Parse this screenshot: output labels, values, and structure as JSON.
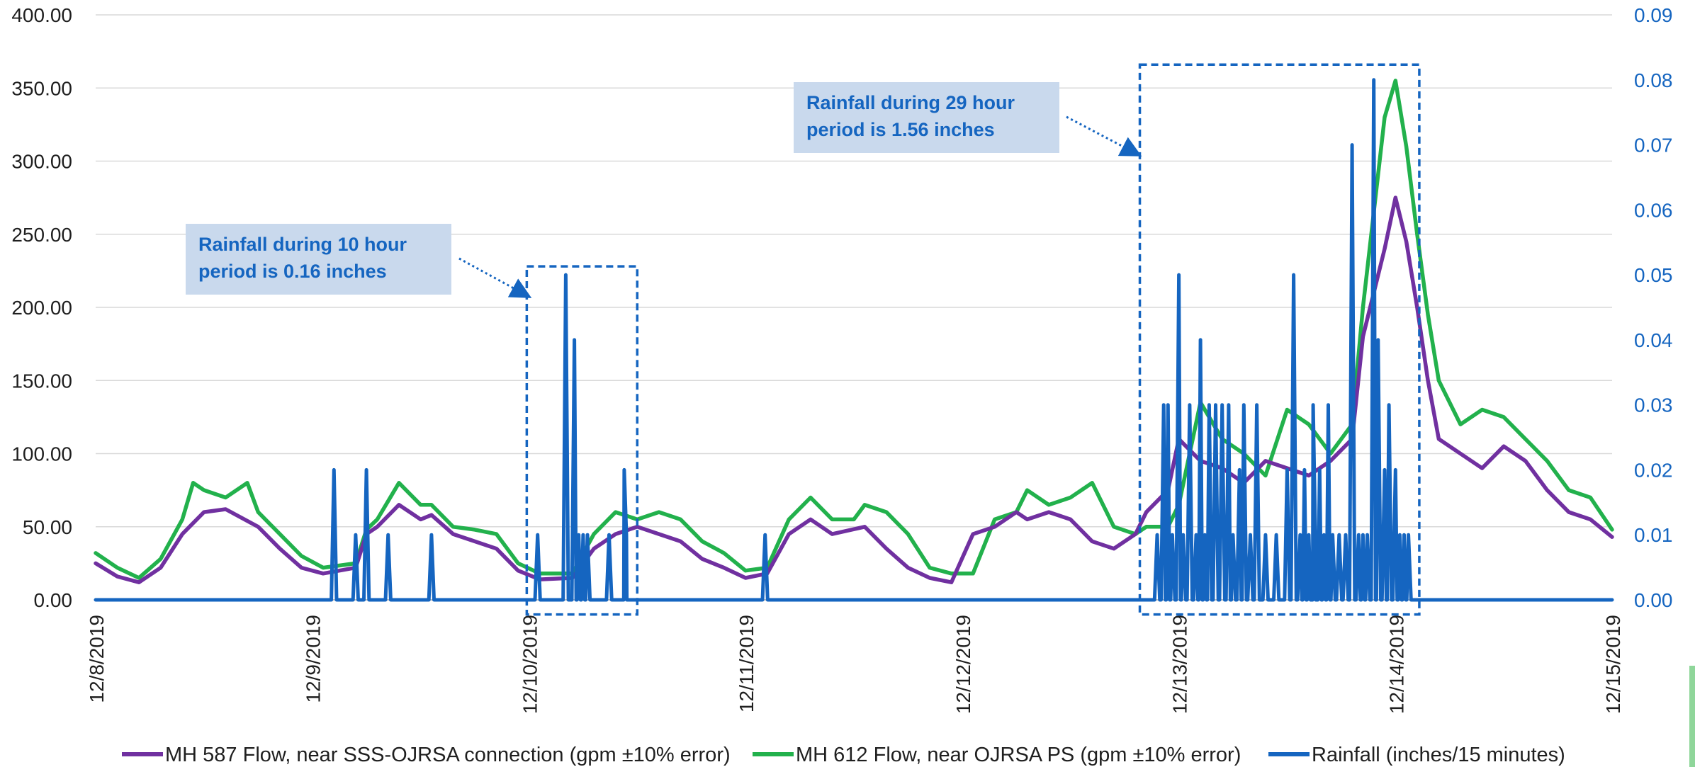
{
  "chart_data": {
    "type": "line",
    "title": "",
    "y_left": {
      "range": [
        0,
        400
      ],
      "ticks": [
        "0.00",
        "50.00",
        "100.00",
        "150.00",
        "200.00",
        "250.00",
        "300.00",
        "350.00",
        "400.00"
      ]
    },
    "y_right": {
      "range": [
        0,
        0.09
      ],
      "ticks": [
        "0.00",
        "0.01",
        "0.02",
        "0.03",
        "0.04",
        "0.05",
        "0.06",
        "0.07",
        "0.08",
        "0.09"
      ]
    },
    "x_range_days": [
      0,
      7
    ],
    "x_ticks": [
      "12/8/2019",
      "12/9/2019",
      "12/10/2019",
      "12/11/2019",
      "12/12/2019",
      "12/13/2019",
      "12/14/2019",
      "12/15/2019"
    ],
    "grid": true,
    "legend_position": "bottom",
    "series": [
      {
        "name": "MH 587 Flow, near SSS-OJRSA connection (gpm ±10% error)",
        "axis": "left",
        "color": "#7030a0",
        "x": [
          0,
          0.1,
          0.2,
          0.3,
          0.4,
          0.5,
          0.6,
          0.75,
          0.85,
          0.95,
          1.05,
          1.2,
          1.25,
          1.3,
          1.4,
          1.5,
          1.55,
          1.65,
          1.75,
          1.85,
          1.95,
          2.05,
          2.2,
          2.3,
          2.4,
          2.5,
          2.6,
          2.7,
          2.8,
          2.9,
          3.0,
          3.1,
          3.2,
          3.3,
          3.4,
          3.55,
          3.65,
          3.75,
          3.85,
          3.95,
          4.05,
          4.15,
          4.25,
          4.3,
          4.4,
          4.5,
          4.6,
          4.7,
          4.8,
          4.85,
          4.95,
          5.0,
          5.1,
          5.2,
          5.3,
          5.4,
          5.5,
          5.6,
          5.7,
          5.8,
          5.85,
          5.95,
          6.0,
          6.05,
          6.1,
          6.15,
          6.2,
          6.3,
          6.4,
          6.5,
          6.6,
          6.7,
          6.8,
          6.9,
          7.0
        ],
        "values": [
          25,
          16,
          12,
          22,
          45,
          60,
          62,
          50,
          35,
          22,
          18,
          22,
          45,
          50,
          65,
          55,
          58,
          45,
          40,
          35,
          20,
          14,
          15,
          35,
          45,
          50,
          45,
          40,
          28,
          22,
          15,
          18,
          45,
          55,
          45,
          50,
          35,
          22,
          15,
          12,
          45,
          50,
          60,
          55,
          60,
          55,
          40,
          35,
          45,
          60,
          75,
          110,
          95,
          90,
          80,
          95,
          90,
          85,
          95,
          110,
          180,
          240,
          275,
          245,
          200,
          150,
          110,
          100,
          90,
          105,
          95,
          75,
          60,
          55,
          43
        ]
      },
      {
        "name": "MH 612 Flow, near OJRSA PS (gpm ±10% error)",
        "axis": "left",
        "color": "#22b14c",
        "x": [
          0,
          0.1,
          0.2,
          0.3,
          0.4,
          0.45,
          0.5,
          0.6,
          0.7,
          0.75,
          0.85,
          0.95,
          1.05,
          1.2,
          1.25,
          1.3,
          1.4,
          1.5,
          1.55,
          1.65,
          1.75,
          1.85,
          1.95,
          2.05,
          2.2,
          2.3,
          2.4,
          2.5,
          2.6,
          2.7,
          2.8,
          2.9,
          3.0,
          3.1,
          3.2,
          3.3,
          3.4,
          3.5,
          3.55,
          3.65,
          3.75,
          3.85,
          3.95,
          4.05,
          4.15,
          4.25,
          4.3,
          4.4,
          4.5,
          4.6,
          4.7,
          4.8,
          4.85,
          4.95,
          5.0,
          5.1,
          5.2,
          5.3,
          5.4,
          5.5,
          5.6,
          5.7,
          5.8,
          5.85,
          5.95,
          6.0,
          6.05,
          6.1,
          6.15,
          6.2,
          6.3,
          6.4,
          6.5,
          6.6,
          6.7,
          6.8,
          6.9,
          7.0
        ],
        "values": [
          32,
          22,
          15,
          28,
          55,
          80,
          75,
          70,
          80,
          60,
          45,
          30,
          22,
          25,
          48,
          55,
          80,
          65,
          65,
          50,
          48,
          45,
          25,
          18,
          18,
          45,
          60,
          55,
          60,
          55,
          40,
          32,
          20,
          22,
          55,
          70,
          55,
          55,
          65,
          60,
          45,
          22,
          18,
          18,
          55,
          60,
          75,
          65,
          70,
          80,
          50,
          45,
          50,
          50,
          65,
          135,
          110,
          100,
          85,
          130,
          120,
          100,
          120,
          200,
          330,
          355,
          310,
          250,
          195,
          150,
          120,
          130,
          125,
          110,
          95,
          75,
          70,
          48
        ]
      },
      {
        "name": "Rainfall (inches/15 minutes)",
        "axis": "right",
        "color": "#1565c0",
        "x": [
          0,
          1.1,
          1.2,
          1.25,
          1.35,
          1.55,
          2.04,
          2.17,
          2.21,
          2.23,
          2.25,
          2.27,
          2.37,
          2.44,
          2.45,
          3.09,
          4.9,
          4.93,
          4.95,
          4.97,
          5.0,
          5.02,
          5.05,
          5.08,
          5.1,
          5.12,
          5.14,
          5.17,
          5.2,
          5.23,
          5.25,
          5.28,
          5.3,
          5.33,
          5.36,
          5.4,
          5.45,
          5.5,
          5.53,
          5.56,
          5.58,
          5.6,
          5.62,
          5.63,
          5.65,
          5.67,
          5.69,
          5.71,
          5.74,
          5.77,
          5.8,
          5.83,
          5.85,
          5.87,
          5.9,
          5.92,
          5.95,
          5.97,
          6.0,
          6.02,
          6.04,
          6.06,
          7.0
        ],
        "values": [
          0,
          0.02,
          0.01,
          0.02,
          0.01,
          0.01,
          0.01,
          0.05,
          0.04,
          0.01,
          0.01,
          0.01,
          0.01,
          0.02,
          0.01,
          0.01,
          0.01,
          0.03,
          0.03,
          0.01,
          0.05,
          0.01,
          0.03,
          0.01,
          0.04,
          0.01,
          0.03,
          0.03,
          0.03,
          0.03,
          0.01,
          0.02,
          0.03,
          0.01,
          0.03,
          0.01,
          0.01,
          0.02,
          0.05,
          0.01,
          0.02,
          0.01,
          0.03,
          0.01,
          0.02,
          0.01,
          0.03,
          0.01,
          0.01,
          0.01,
          0.07,
          0.01,
          0.01,
          0.01,
          0.08,
          0.04,
          0.02,
          0.03,
          0.02,
          0.01,
          0.01,
          0.01,
          0
        ]
      }
    ],
    "annotations": [
      {
        "lines": [
          "Rainfall during 10 hour",
          "period is 0.16 inches"
        ],
        "box_days": [
          1.99,
          2.5
        ],
        "box_y": [
          228,
          -10
        ]
      },
      {
        "lines": [
          "Rainfall during 29 hour",
          "period is 1.56 inches"
        ],
        "box_days": [
          4.82,
          6.11
        ],
        "box_y": [
          366,
          -10
        ]
      }
    ]
  }
}
